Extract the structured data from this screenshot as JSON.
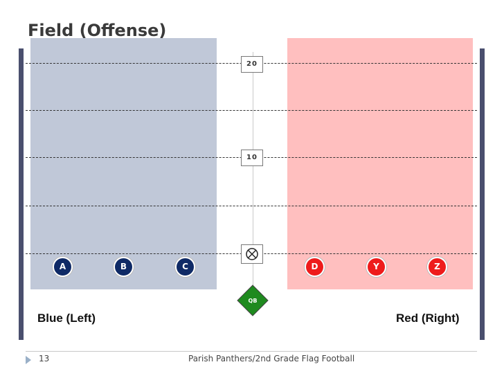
{
  "title": "Field (Offense)",
  "yard_markers": [
    "20",
    "10"
  ],
  "players": {
    "blue": [
      "A",
      "B",
      "C"
    ],
    "red": [
      "D",
      "Y",
      "Z"
    ]
  },
  "qb_label": "QB",
  "labels": {
    "blue_side": "Blue (Left)",
    "red_side": "Red (Right)"
  },
  "footer": {
    "slide_number": "13",
    "text": "Parish Panthers/2nd Grade Flag Football"
  },
  "colors": {
    "blue_zone": "#c0c8d8",
    "red_zone": "#ffbfbf",
    "blue_player": "#0f2a66",
    "red_player": "#ee1c1c",
    "qb": "#1f8a1f",
    "pillar": "#4a4f6e"
  }
}
